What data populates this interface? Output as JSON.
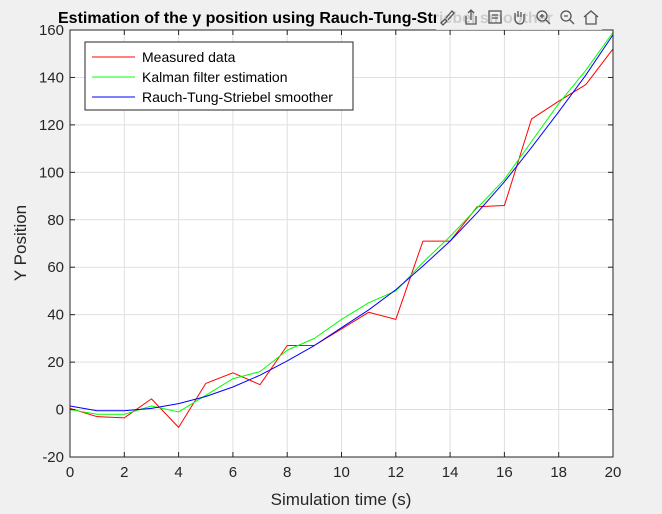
{
  "title": "Estimation of the y position using Rauch-Tung-Striebel smoother",
  "toolbar": {
    "icons": [
      "brush-icon",
      "export-icon",
      "datatip-icon",
      "pan-icon",
      "zoom-in-icon",
      "zoom-out-icon",
      "home-icon"
    ]
  },
  "chart_data": {
    "type": "line",
    "title": "Estimation of the y position using Rauch-Tung-Striebel smoother",
    "xlabel": "Simulation time (s)",
    "ylabel": "Y Position",
    "xlim": [
      0,
      20
    ],
    "ylim": [
      -20,
      160
    ],
    "xticks": [
      0,
      2,
      4,
      6,
      8,
      10,
      12,
      14,
      16,
      18,
      20
    ],
    "yticks": [
      -20,
      0,
      20,
      40,
      60,
      80,
      100,
      120,
      140,
      160
    ],
    "grid": true,
    "legend_position": "top-left",
    "x": [
      0,
      1,
      2,
      3,
      4,
      5,
      6,
      7,
      8,
      9,
      10,
      11,
      12,
      13,
      14,
      15,
      16,
      17,
      18,
      19,
      20
    ],
    "series": [
      {
        "name": "Measured data",
        "color": "#ff0000",
        "values": [
          0.5,
          -3,
          -3.5,
          4.5,
          -7.5,
          11,
          15.5,
          10.5,
          27,
          27,
          34,
          41,
          38,
          71,
          71,
          85.5,
          86,
          122.5,
          130,
          137,
          152
        ]
      },
      {
        "name": "Kalman filter estimation",
        "color": "#00ff00",
        "values": [
          0,
          -2,
          -2,
          1.5,
          -1,
          6,
          13,
          16,
          25,
          30,
          38,
          45,
          50,
          62,
          73,
          85,
          97,
          113,
          129,
          143,
          159
        ]
      },
      {
        "name": "Rauch-Tung-Striebel smoother",
        "color": "#0000ff",
        "values": [
          1.5,
          -0.5,
          -0.5,
          0.5,
          2.5,
          5.5,
          9.5,
          14.5,
          20.5,
          27,
          34.5,
          42,
          50.5,
          60.5,
          71,
          83,
          96,
          110.5,
          125.5,
          141,
          158
        ]
      }
    ]
  }
}
